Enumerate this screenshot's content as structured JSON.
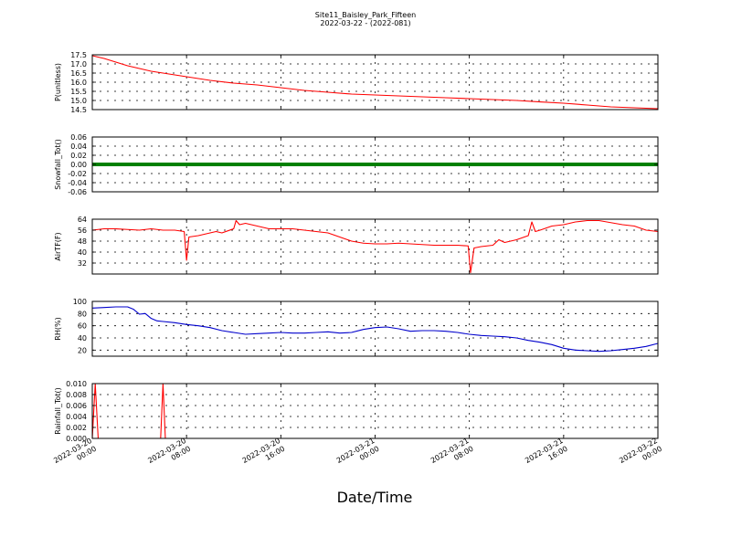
{
  "title": "Site11_Baisley_Park_Fifteen",
  "subtitle": "2022-03-22 - (2022-081)",
  "xlabel": "Date/Time",
  "x_ticks": [
    {
      "t": 0,
      "line1": "2022-03-20",
      "line2": "00:00"
    },
    {
      "t": 8,
      "line1": "2022-03-20",
      "line2": "08:00"
    },
    {
      "t": 16,
      "line1": "2022-03-20",
      "line2": "16:00"
    },
    {
      "t": 24,
      "line1": "2022-03-21",
      "line2": "00:00"
    },
    {
      "t": 32,
      "line1": "2022-03-21",
      "line2": "08:00"
    },
    {
      "t": 40,
      "line1": "2022-03-21",
      "line2": "16:00"
    },
    {
      "t": 48,
      "line1": "2022-03-22",
      "line2": "00:00"
    }
  ],
  "chart_data": [
    {
      "type": "line",
      "ylabel": "P(unitless)",
      "ylim": [
        14.5,
        17.5
      ],
      "yticks": [
        "17.5",
        "17.0",
        "16.5",
        "16.0",
        "15.5",
        "15.0",
        "14.5"
      ],
      "ytick_values": [
        17.5,
        17.0,
        16.5,
        16.0,
        15.5,
        15.0,
        14.5
      ],
      "series": [
        {
          "color": "#ff0000",
          "x": [
            0,
            1,
            2,
            3,
            4,
            5,
            6,
            7,
            8,
            10,
            12,
            14,
            16,
            18,
            20,
            22,
            24,
            26,
            28,
            30,
            32,
            34,
            36,
            38,
            40,
            42,
            44,
            46,
            48
          ],
          "y": [
            17.45,
            17.3,
            17.1,
            16.9,
            16.75,
            16.6,
            16.5,
            16.4,
            16.3,
            16.1,
            15.95,
            15.85,
            15.7,
            15.55,
            15.45,
            15.35,
            15.3,
            15.25,
            15.2,
            15.15,
            15.1,
            15.05,
            15.0,
            14.92,
            14.85,
            14.75,
            14.65,
            14.6,
            14.55
          ]
        }
      ]
    },
    {
      "type": "line",
      "ylabel": "Snowfall_Tot()",
      "ylim": [
        -0.06,
        0.06
      ],
      "yticks": [
        "0.06",
        "0.04",
        "0.02",
        "0.00",
        "-0.02",
        "-0.04",
        "-0.06"
      ],
      "ytick_values": [
        0.06,
        0.04,
        0.02,
        0.0,
        -0.02,
        -0.04,
        -0.06
      ],
      "series": [
        {
          "color": "#008000",
          "x": [
            0,
            48
          ],
          "y": [
            0,
            0
          ]
        }
      ]
    },
    {
      "type": "line",
      "ylabel": "AirTF(F)",
      "ylim": [
        24,
        64
      ],
      "yticks": [
        "64",
        "56",
        "48",
        "40",
        "32"
      ],
      "ytick_values": [
        64,
        56,
        48,
        40,
        32
      ],
      "series": [
        {
          "color": "#ff0000",
          "x": [
            0,
            1,
            2,
            3,
            4,
            5,
            6,
            7,
            7.8,
            8.0,
            8.2,
            9,
            10,
            10.5,
            11,
            12,
            12.2,
            12.5,
            13,
            14,
            15,
            16,
            17,
            18,
            19,
            20,
            21,
            22,
            23,
            24,
            25,
            26,
            27,
            28,
            29,
            30,
            31,
            31.9,
            32.1,
            32.4,
            33,
            34,
            34.5,
            35,
            36,
            37,
            37.3,
            37.6,
            38,
            39,
            40,
            41,
            42,
            43,
            44,
            45,
            46,
            47,
            48
          ],
          "y": [
            56,
            57,
            57,
            56.5,
            56,
            57,
            56,
            56,
            55,
            34,
            51,
            52,
            54,
            55,
            54,
            57,
            63,
            60,
            61,
            59,
            57,
            57,
            57,
            56,
            55,
            54,
            51,
            48,
            46.5,
            46,
            46,
            46.5,
            46,
            45.5,
            45,
            45,
            45,
            44.5,
            25,
            43,
            44,
            45,
            49,
            47,
            49,
            52,
            62,
            55,
            56,
            59,
            60,
            62,
            63,
            63,
            61.5,
            60,
            59,
            56,
            55
          ]
        }
      ]
    },
    {
      "type": "line",
      "ylabel": "RH(%)",
      "ylim": [
        10,
        100
      ],
      "yticks": [
        "100",
        "80",
        "60",
        "40",
        "20"
      ],
      "ytick_values": [
        100,
        80,
        60,
        40,
        20
      ],
      "series": [
        {
          "color": "#0000cc",
          "x": [
            0,
            1,
            2,
            3,
            3.5,
            4,
            4.5,
            5,
            5.5,
            6,
            7,
            8,
            9,
            10,
            11,
            12,
            13,
            14,
            15,
            16,
            17,
            18,
            19,
            20,
            21,
            22,
            23,
            24,
            25,
            26,
            27,
            28,
            29,
            30,
            31,
            32,
            33,
            34,
            35,
            36,
            37,
            38,
            39,
            40,
            41,
            42,
            43,
            44,
            45,
            46,
            47,
            48
          ],
          "y": [
            89,
            90,
            91,
            91,
            87,
            79,
            80,
            72,
            68,
            67,
            65,
            62,
            60,
            57,
            52,
            49,
            46,
            47,
            48,
            49,
            48,
            48,
            49,
            50,
            48,
            49,
            54,
            57,
            58,
            55,
            51,
            52,
            52,
            51,
            49,
            46,
            44,
            43,
            42,
            40,
            36,
            33,
            29,
            23,
            20,
            19,
            18,
            19,
            21,
            23,
            26,
            31
          ]
        }
      ]
    },
    {
      "type": "line",
      "ylabel": "Rainfall_Tot()",
      "ylim": [
        0,
        0.01
      ],
      "yticks": [
        "0.010",
        "0.008",
        "0.006",
        "0.004",
        "0.002",
        "0.000"
      ],
      "ytick_values": [
        0.01,
        0.008,
        0.006,
        0.004,
        0.002,
        0.0
      ],
      "series": [
        {
          "color": "#ff0000",
          "x": [
            0,
            0.25,
            0.5,
            5.5,
            5.8,
            6.0,
            6.2,
            48
          ],
          "y": [
            0,
            0.01,
            0,
            0,
            0,
            0.01,
            0,
            0
          ]
        }
      ]
    }
  ]
}
